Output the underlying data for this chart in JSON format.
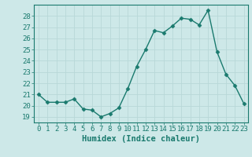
{
  "x": [
    0,
    1,
    2,
    3,
    4,
    5,
    6,
    7,
    8,
    9,
    10,
    11,
    12,
    13,
    14,
    15,
    16,
    17,
    18,
    19,
    20,
    21,
    22,
    23
  ],
  "y": [
    21.0,
    20.3,
    20.3,
    20.3,
    20.6,
    19.7,
    19.6,
    19.0,
    19.3,
    19.8,
    21.5,
    23.5,
    25.0,
    26.7,
    26.5,
    27.1,
    27.8,
    27.7,
    27.2,
    28.5,
    24.8,
    22.8,
    21.8,
    20.2
  ],
  "line_color": "#1a7a6e",
  "marker": "D",
  "marker_size": 2.5,
  "bg_color": "#cde8e8",
  "grid_color": "#b8d8d8",
  "xlabel": "Humidex (Indice chaleur)",
  "ylim": [
    18.5,
    29.0
  ],
  "xlim": [
    -0.5,
    23.5
  ],
  "yticks": [
    19,
    20,
    21,
    22,
    23,
    24,
    25,
    26,
    27,
    28
  ],
  "xticks": [
    0,
    1,
    2,
    3,
    4,
    5,
    6,
    7,
    8,
    9,
    10,
    11,
    12,
    13,
    14,
    15,
    16,
    17,
    18,
    19,
    20,
    21,
    22,
    23
  ],
  "tick_color": "#1a7a6e",
  "label_color": "#1a7a6e",
  "xlabel_fontsize": 7.5,
  "tick_fontsize": 6.5,
  "line_width": 1.0
}
